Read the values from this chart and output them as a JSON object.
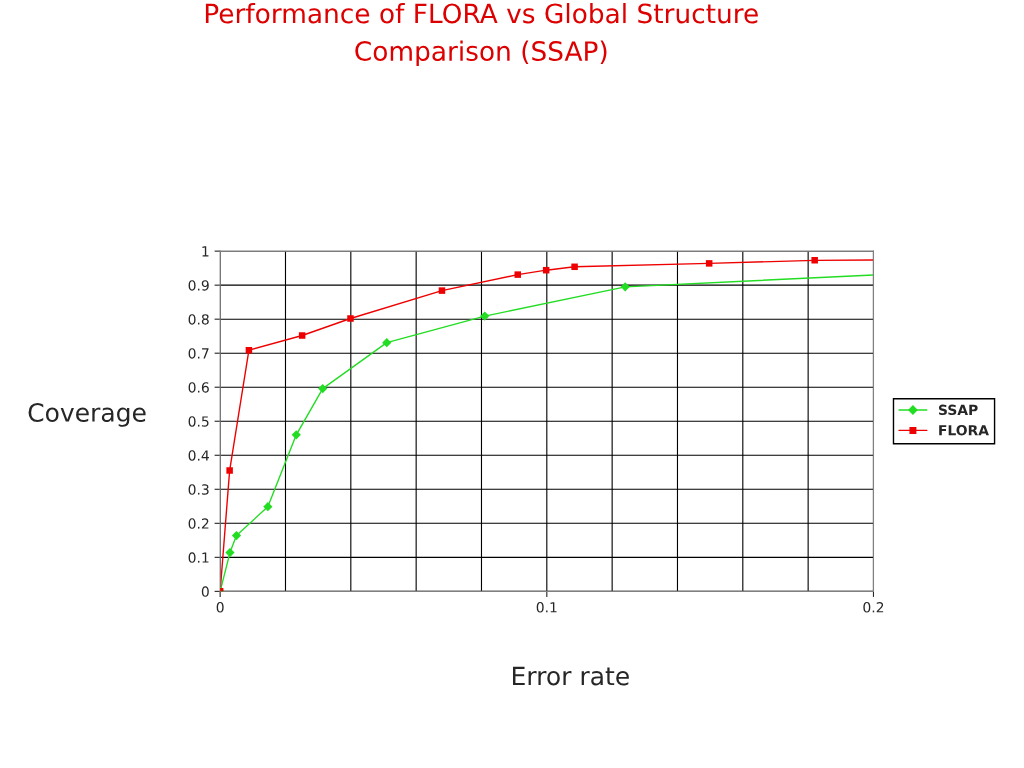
{
  "chart_data": {
    "type": "line",
    "title": "Performance of FLORA vs Global Structure\nComparison (SSAP)",
    "xlabel": "Error rate",
    "ylabel": "Coverage",
    "series": [
      {
        "name": "SSAP",
        "color": "#22dd22",
        "marker": "diamond",
        "x": [
          0,
          0.003,
          0.005,
          0.0146,
          0.0233,
          0.0314,
          0.051,
          0.081,
          0.124,
          0.2
        ],
        "values": [
          0,
          0.114,
          0.164,
          0.249,
          0.46,
          0.596,
          0.731,
          0.809,
          0.895,
          0.93
        ]
      },
      {
        "name": "FLORA",
        "color": "#ee0000",
        "marker": "square",
        "x": [
          0,
          0.0029,
          0.0088,
          0.0251,
          0.0399,
          0.0679,
          0.0911,
          0.0998,
          0.1085,
          0.1497,
          0.182,
          0.2
        ],
        "values": [
          0,
          0.355,
          0.709,
          0.752,
          0.802,
          0.884,
          0.931,
          0.944,
          0.954,
          0.964,
          0.973,
          0.974
        ]
      }
    ],
    "xlim": [
      0,
      0.2
    ],
    "xticks": [
      0,
      0.1,
      0.2
    ],
    "ylim": [
      0,
      1
    ],
    "yticks": [
      0,
      0.1,
      0.2,
      0.3,
      0.4,
      0.5,
      0.6,
      0.7,
      0.8,
      0.9,
      1
    ],
    "grid": true,
    "legend": "right"
  }
}
